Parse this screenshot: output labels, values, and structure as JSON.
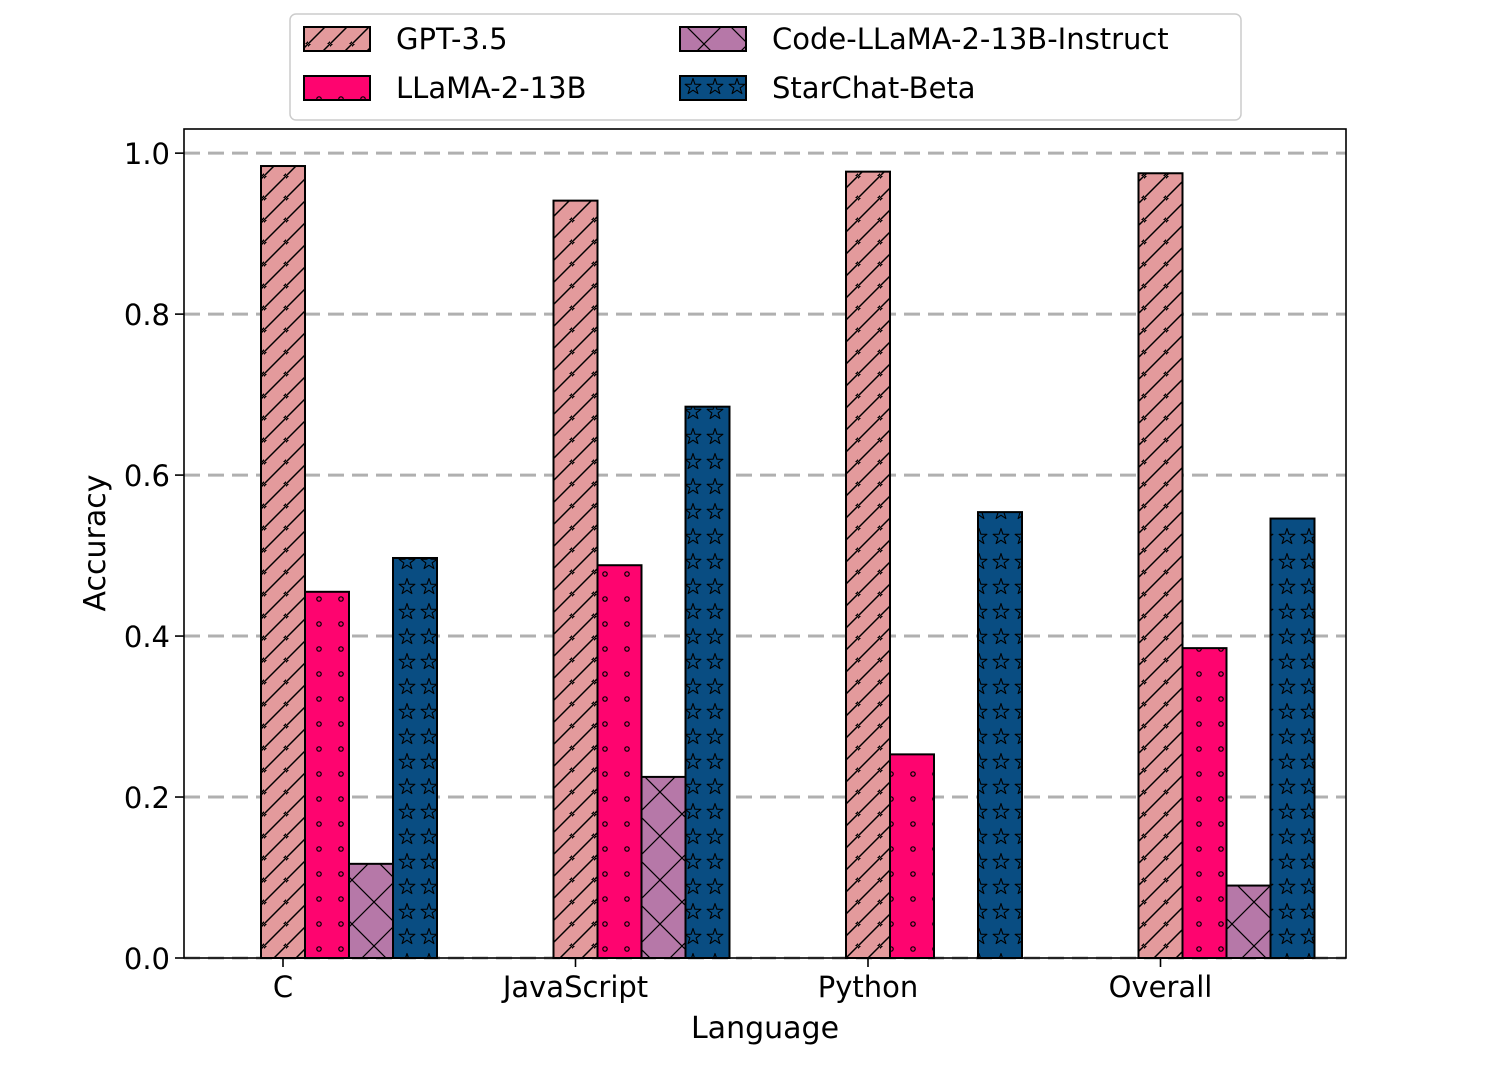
{
  "chart_data": {
    "type": "bar",
    "title": "",
    "xlabel": "Language",
    "ylabel": "Accuracy",
    "categories": [
      "C",
      "JavaScript",
      "Python",
      "Overall"
    ],
    "ylim": [
      0,
      1.03
    ],
    "yticks": [
      "0.0",
      "0.2",
      "0.4",
      "0.6",
      "0.8",
      "1.0"
    ],
    "grid": "horizontal dashed at y ticks",
    "legend_position": "top-center, above plot",
    "series": [
      {
        "name": "GPT-3.5",
        "color": "#e39a9c",
        "hatch": "diagonal",
        "values": [
          0.984,
          0.941,
          0.977,
          0.975
        ]
      },
      {
        "name": "LLaMA-2-13B",
        "color": "#fe046f",
        "hatch": "dots",
        "values": [
          0.455,
          0.488,
          0.253,
          0.385
        ]
      },
      {
        "name": "Code-LLaMA-2-13B-Instruct",
        "color": "#b678a8",
        "hatch": "crosshatch",
        "values": [
          0.117,
          0.225,
          0.0,
          0.09
        ]
      },
      {
        "name": "StarChat-Beta",
        "color": "#094d82",
        "hatch": "stars",
        "values": [
          0.497,
          0.685,
          0.554,
          0.546
        ]
      }
    ]
  }
}
